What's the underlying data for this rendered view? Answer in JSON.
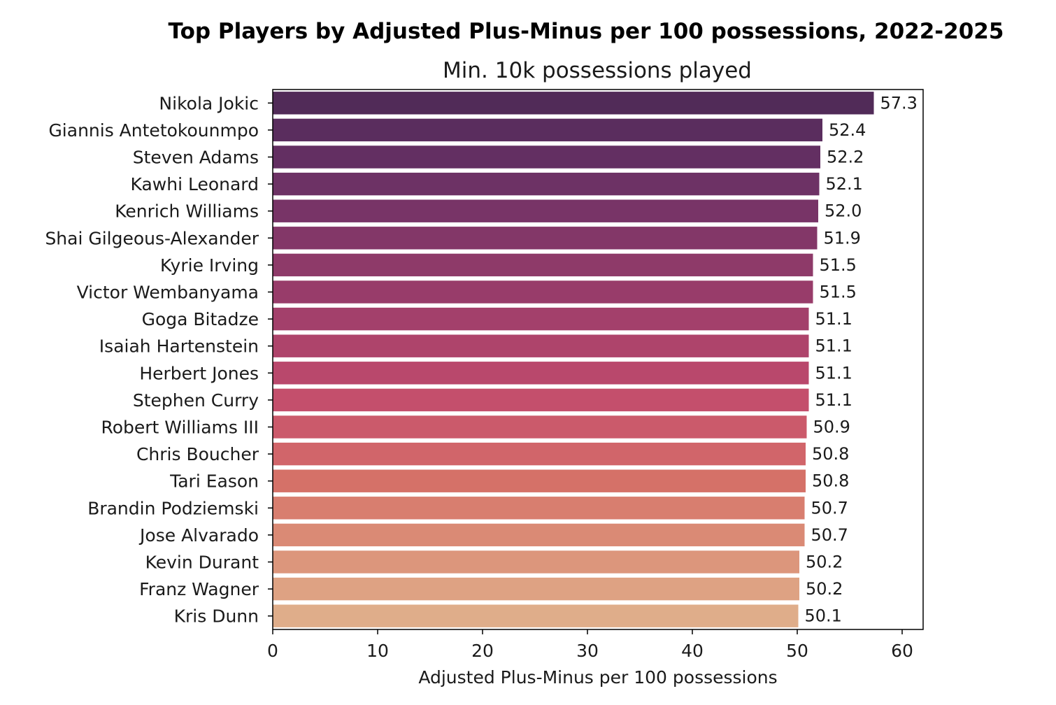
{
  "chart_data": {
    "type": "bar",
    "orientation": "horizontal",
    "title": "Top Players by Adjusted Plus-Minus per 100 possessions, 2022-2025",
    "subtitle": "Min. 10k possessions played",
    "xlabel": "Adjusted Plus-Minus per 100 possessions",
    "ylabel": "",
    "xlim": [
      0,
      62
    ],
    "xticks": [
      0,
      10,
      20,
      30,
      40,
      50,
      60
    ],
    "grid": false,
    "legend": "none",
    "categories": [
      "Nikola Jokic",
      "Giannis Antetokounmpo",
      "Steven Adams",
      "Kawhi Leonard",
      "Kenrich Williams",
      "Shai Gilgeous-Alexander",
      "Kyrie Irving",
      "Victor Wembanyama",
      "Goga Bitadze",
      "Isaiah Hartenstein",
      "Herbert Jones",
      "Stephen Curry",
      "Robert Williams III",
      "Chris Boucher",
      "Tari Eason",
      "Brandin Podziemski",
      "Jose Alvarado",
      "Kevin Durant",
      "Franz Wagner",
      "Kris Dunn"
    ],
    "values": [
      57.3,
      52.4,
      52.2,
      52.1,
      52.0,
      51.9,
      51.5,
      51.5,
      51.1,
      51.1,
      51.1,
      51.1,
      50.9,
      50.8,
      50.8,
      50.7,
      50.7,
      50.2,
      50.2,
      50.1
    ],
    "value_labels": [
      "57.3",
      "52.4",
      "52.2",
      "52.1",
      "52.0",
      "51.9",
      "51.5",
      "51.5",
      "51.1",
      "51.1",
      "51.1",
      "51.1",
      "50.9",
      "50.8",
      "50.8",
      "50.7",
      "50.7",
      "50.2",
      "50.2",
      "50.1"
    ],
    "colors": [
      "#512b58",
      "#5a2d5e",
      "#632f62",
      "#6d3265",
      "#783467",
      "#833768",
      "#8e3a69",
      "#983c6a",
      "#a3406b",
      "#ae446b",
      "#b9486c",
      "#c44f6c",
      "#cb5a6b",
      "#d1656a",
      "#d57168",
      "#d87e6f",
      "#da8a75",
      "#dc967c",
      "#dea283",
      "#dfad8a"
    ]
  }
}
